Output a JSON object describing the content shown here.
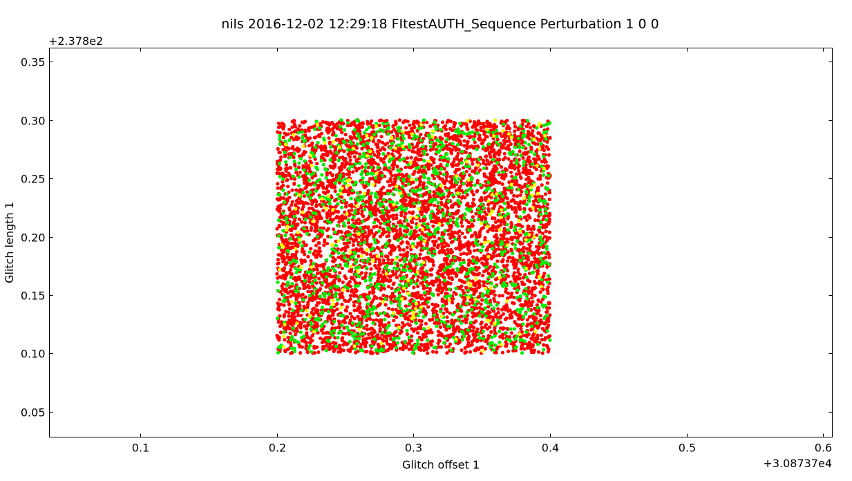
{
  "chart_data": {
    "type": "scatter",
    "title": "nils 2016-12-02 12:29:18 FItestAUTH_Sequence Perturbation 1 0 0",
    "xlabel": "Glitch offset 1",
    "ylabel": "Glitch length 1",
    "x_offset_label": "+3.08737e4",
    "y_offset_label": "+2.378e2",
    "xlim": [
      0.0333,
      0.6067
    ],
    "ylim": [
      0.0283,
      0.3617
    ],
    "xticks": [
      0.1,
      0.2,
      0.3,
      0.4,
      0.5,
      0.6
    ],
    "xtick_labels": [
      "0.1",
      "0.2",
      "0.3",
      "0.4",
      "0.5",
      "0.6"
    ],
    "yticks": [
      0.05,
      0.1,
      0.15,
      0.2,
      0.25,
      0.3,
      0.35
    ],
    "ytick_labels": [
      "0.05",
      "0.10",
      "0.15",
      "0.20",
      "0.25",
      "0.30",
      "0.35"
    ],
    "grid": false,
    "legend": "none",
    "point_region": {
      "x_min": 0.2,
      "x_max": 0.4,
      "y_min": 0.1,
      "y_max": 0.3
    },
    "series": [
      {
        "color": "#ff0000",
        "approx_count": 5200
      },
      {
        "color": "#00ee00",
        "approx_count": 1100
      },
      {
        "color": "#ffff00",
        "approx_count": 180
      }
    ]
  }
}
